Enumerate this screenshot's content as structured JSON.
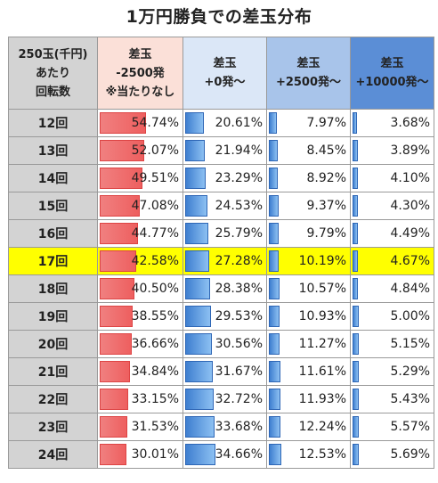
{
  "title": "1万円勝負での差玉分布",
  "headers": [
    [
      "250玉(千円)",
      "あたり",
      "回転数"
    ],
    [
      "差玉",
      "-2500発",
      "※当たりなし"
    ],
    [
      "差玉",
      "+0発～"
    ],
    [
      "差玉",
      "+2500発～"
    ],
    [
      "差玉",
      "+10000発～"
    ]
  ],
  "highlight_row": "17回",
  "colors": {
    "highlight": "#ffff00",
    "red_bar": "#ee5f5f",
    "blue_bar": "#3f7fd0"
  },
  "chart_data": {
    "type": "table",
    "title": "1万円勝負での差玉分布",
    "columns": [
      "差玉 -2500発 ※当たりなし",
      "差玉 +0発～",
      "差玉 +2500発～",
      "差玉 +10000発～"
    ],
    "rows": [
      {
        "label": "12回",
        "values": [
          "54.74%",
          "20.61%",
          "7.97%",
          "3.68%"
        ]
      },
      {
        "label": "13回",
        "values": [
          "52.07%",
          "21.94%",
          "8.45%",
          "3.89%"
        ]
      },
      {
        "label": "14回",
        "values": [
          "49.51%",
          "23.29%",
          "8.92%",
          "4.10%"
        ]
      },
      {
        "label": "15回",
        "values": [
          "47.08%",
          "24.53%",
          "9.37%",
          "4.30%"
        ]
      },
      {
        "label": "16回",
        "values": [
          "44.77%",
          "25.79%",
          "9.79%",
          "4.49%"
        ]
      },
      {
        "label": "17回",
        "values": [
          "42.58%",
          "27.28%",
          "10.19%",
          "4.67%"
        ]
      },
      {
        "label": "18回",
        "values": [
          "40.50%",
          "28.38%",
          "10.57%",
          "4.84%"
        ]
      },
      {
        "label": "19回",
        "values": [
          "38.55%",
          "29.53%",
          "10.93%",
          "5.00%"
        ]
      },
      {
        "label": "20回",
        "values": [
          "36.66%",
          "30.56%",
          "11.27%",
          "5.15%"
        ]
      },
      {
        "label": "21回",
        "values": [
          "34.84%",
          "31.67%",
          "11.61%",
          "5.29%"
        ]
      },
      {
        "label": "22回",
        "values": [
          "33.15%",
          "32.72%",
          "11.93%",
          "5.43%"
        ]
      },
      {
        "label": "23回",
        "values": [
          "31.53%",
          "33.68%",
          "12.24%",
          "5.57%"
        ]
      },
      {
        "label": "24回",
        "values": [
          "30.01%",
          "34.66%",
          "12.53%",
          "5.69%"
        ]
      }
    ]
  }
}
